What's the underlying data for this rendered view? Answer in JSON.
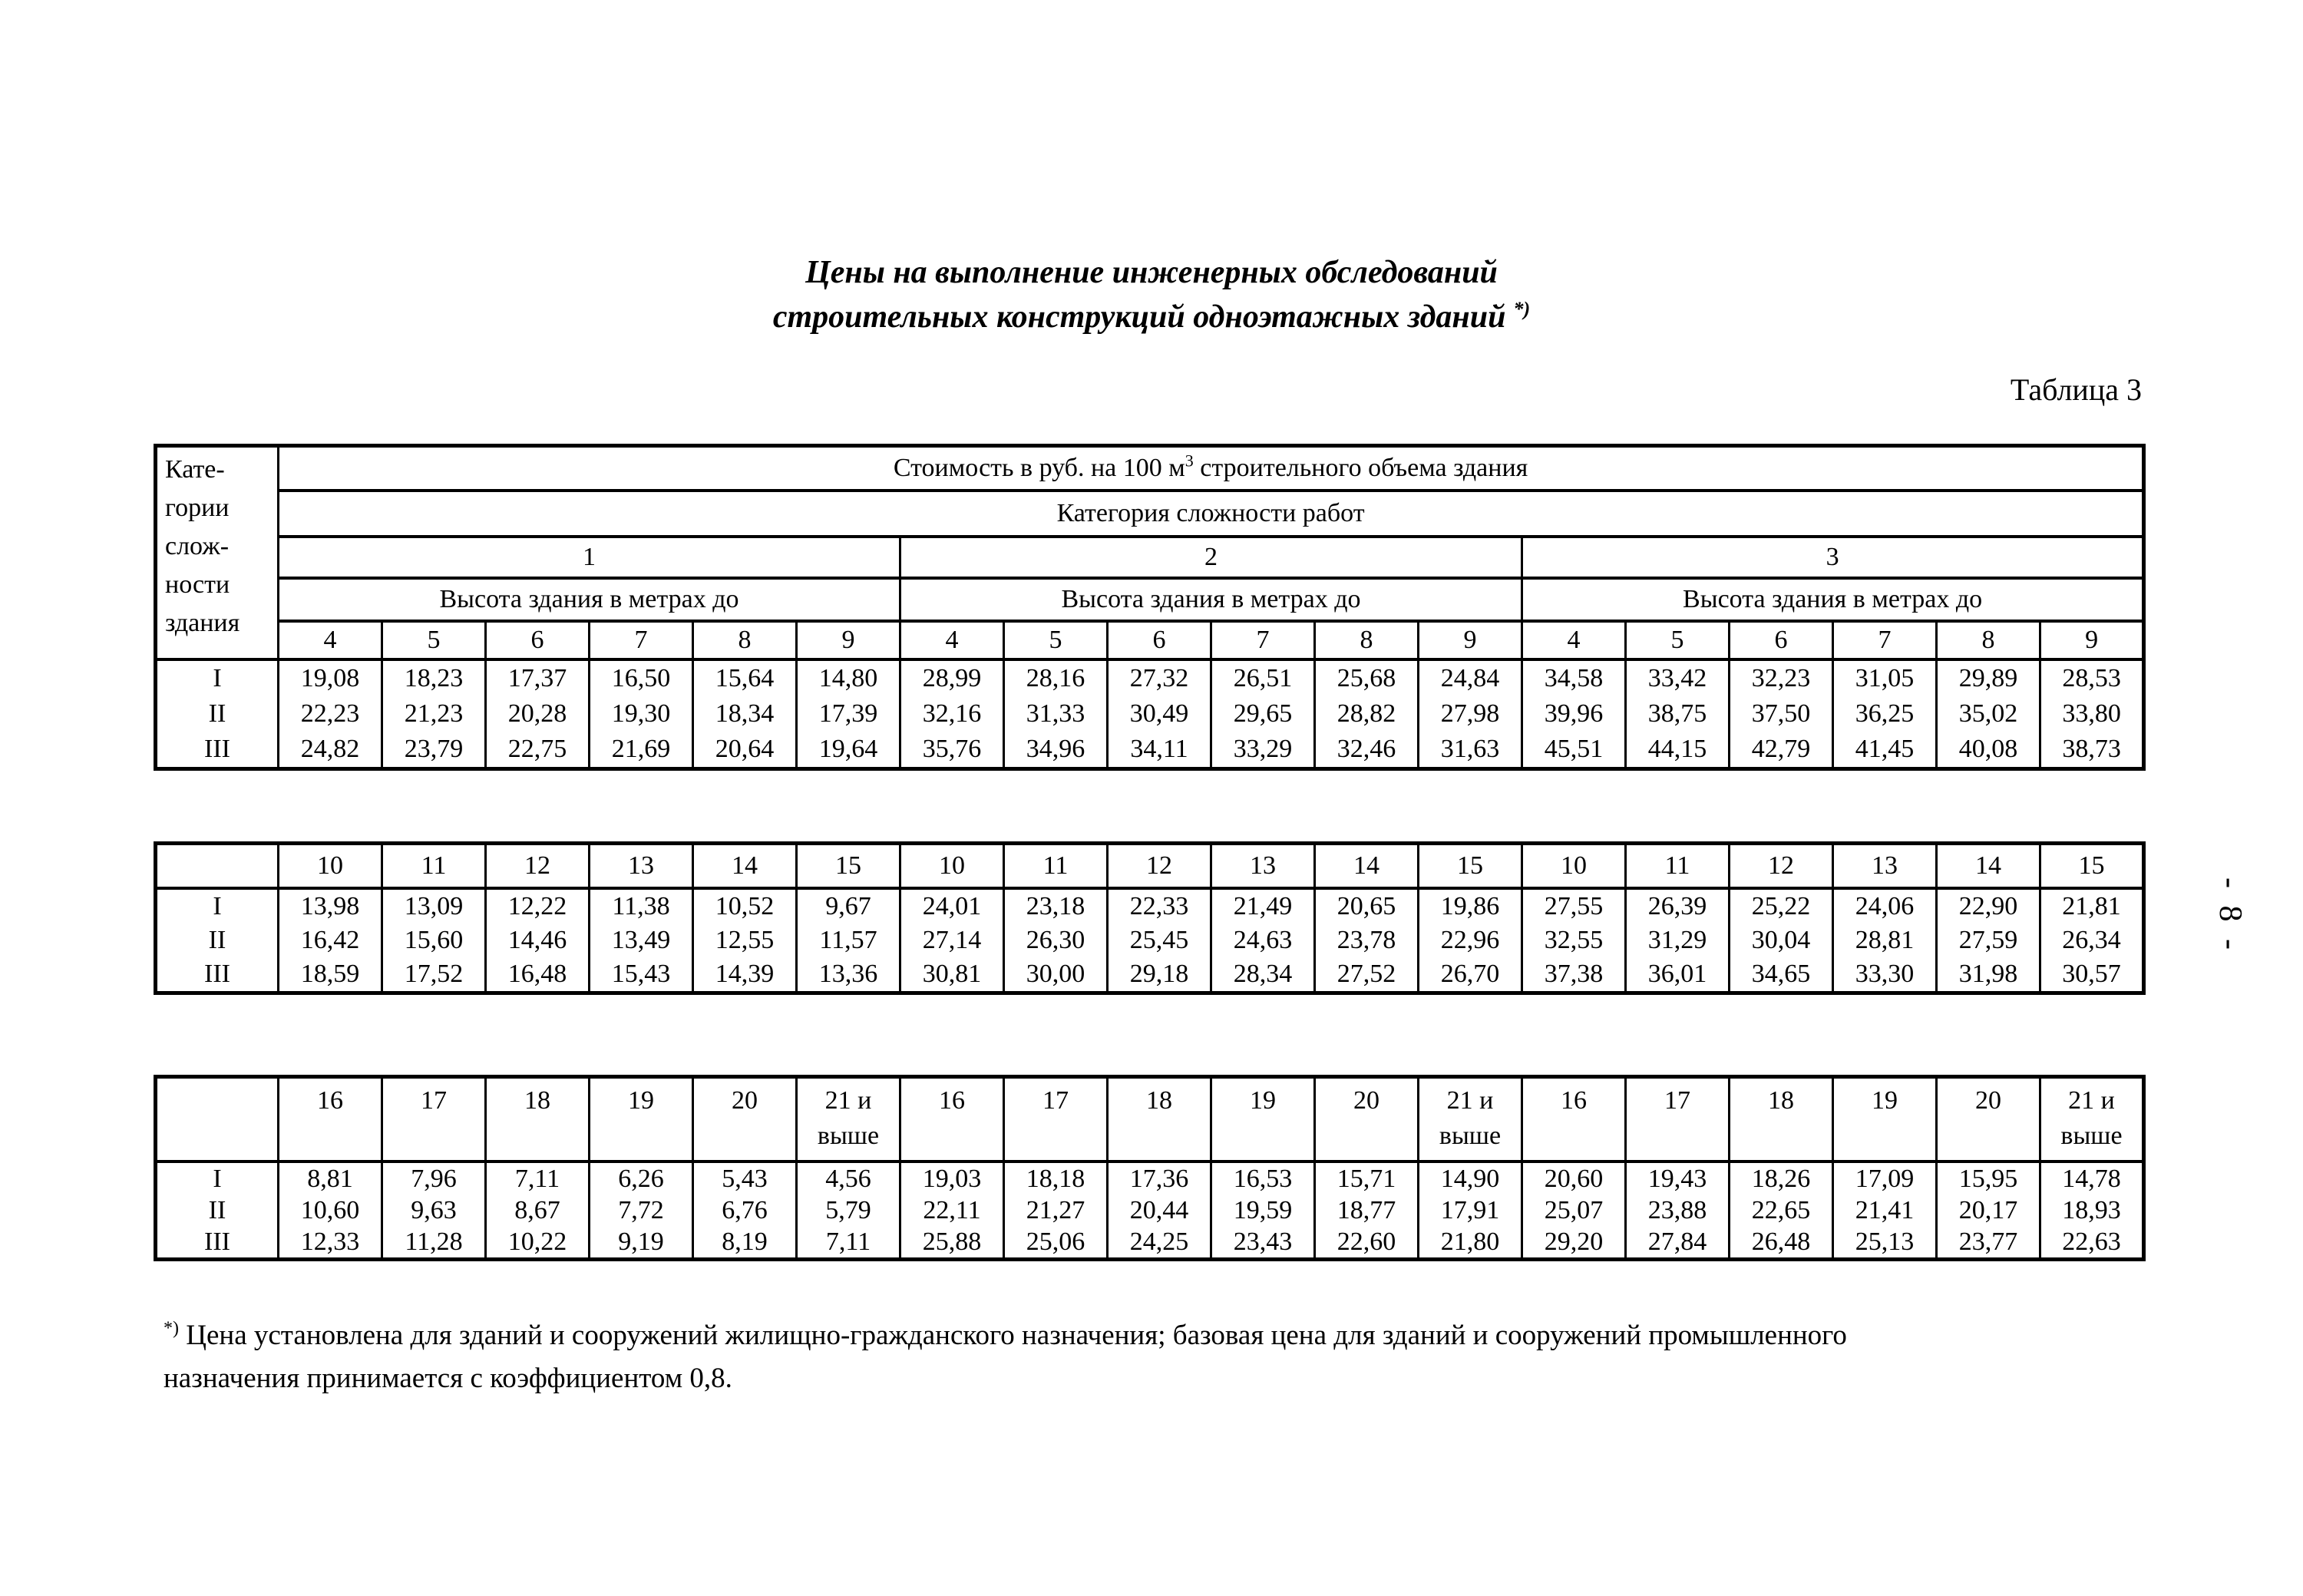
{
  "title": {
    "line1": "Цены на выполнение инженерных обследований",
    "line2": "строительных конструкций одноэтажных зданий",
    "footnote_mark": "*)"
  },
  "caption": "Таблица 3",
  "page_number": "- 8 -",
  "corner_header_lines": [
    "Кате-",
    "гории",
    "слож-",
    "ности",
    "здания"
  ],
  "cost_header": {
    "pre": "Стоимость в руб.  на 100 м",
    "sup": "3",
    "post": " строительного объема здания"
  },
  "category_header": "Категория сложности работ",
  "group_labels": [
    "1",
    "2",
    "3"
  ],
  "height_header": "Высота здания в метрах до",
  "tables": [
    {
      "id": "main",
      "columns": [
        "4",
        "5",
        "6",
        "7",
        "8",
        "9"
      ],
      "rows": [
        {
          "label": "I",
          "values": [
            "19,08",
            "18,23",
            "17,37",
            "16,50",
            "15,64",
            "14,80",
            "28,99",
            "28,16",
            "27,32",
            "26,51",
            "25,68",
            "24,84",
            "34,58",
            "33,42",
            "32,23",
            "31,05",
            "29,89",
            "28,53"
          ]
        },
        {
          "label": "II",
          "values": [
            "22,23",
            "21,23",
            "20,28",
            "19,30",
            "18,34",
            "17,39",
            "32,16",
            "31,33",
            "30,49",
            "29,65",
            "28,82",
            "27,98",
            "39,96",
            "38,75",
            "37,50",
            "36,25",
            "35,02",
            "33,80"
          ]
        },
        {
          "label": "III",
          "values": [
            "24,82",
            "23,79",
            "22,75",
            "21,69",
            "20,64",
            "19,64",
            "35,76",
            "34,96",
            "34,11",
            "33,29",
            "32,46",
            "31,63",
            "45,51",
            "44,15",
            "42,79",
            "41,45",
            "40,08",
            "38,73"
          ]
        }
      ]
    },
    {
      "id": "second",
      "columns": [
        "10",
        "11",
        "12",
        "13",
        "14",
        "15"
      ],
      "rows": [
        {
          "label": "I",
          "values": [
            "13,98",
            "13,09",
            "12,22",
            "11,38",
            "10,52",
            "9,67",
            "24,01",
            "23,18",
            "22,33",
            "21,49",
            "20,65",
            "19,86",
            "27,55",
            "26,39",
            "25,22",
            "24,06",
            "22,90",
            "21,81"
          ]
        },
        {
          "label": "II",
          "values": [
            "16,42",
            "15,60",
            "14,46",
            "13,49",
            "12,55",
            "11,57",
            "27,14",
            "26,30",
            "25,45",
            "24,63",
            "23,78",
            "22,96",
            "32,55",
            "31,29",
            "30,04",
            "28,81",
            "27,59",
            "26,34"
          ]
        },
        {
          "label": "III",
          "values": [
            "18,59",
            "17,52",
            "16,48",
            "15,43",
            "14,39",
            "13,36",
            "30,81",
            "30,00",
            "29,18",
            "28,34",
            "27,52",
            "26,70",
            "37,38",
            "36,01",
            "34,65",
            "33,30",
            "31,98",
            "30,57"
          ]
        }
      ]
    },
    {
      "id": "third",
      "columns": [
        "16",
        "17",
        "18",
        "19",
        "20",
        "21 и\nвыше"
      ],
      "rows": [
        {
          "label": "I",
          "values": [
            "8,81",
            "7,96",
            "7,11",
            "6,26",
            "5,43",
            "4,56",
            "19,03",
            "18,18",
            "17,36",
            "16,53",
            "15,71",
            "14,90",
            "20,60",
            "19,43",
            "18,26",
            "17,09",
            "15,95",
            "14,78"
          ]
        },
        {
          "label": "II",
          "values": [
            "10,60",
            "9,63",
            "8,67",
            "7,72",
            "6,76",
            "5,79",
            "22,11",
            "21,27",
            "20,44",
            "19,59",
            "18,77",
            "17,91",
            "25,07",
            "23,88",
            "22,65",
            "21,41",
            "20,17",
            "18,93"
          ]
        },
        {
          "label": "III",
          "values": [
            "12,33",
            "11,28",
            "10,22",
            "9,19",
            "8,19",
            "7,11",
            "25,88",
            "25,06",
            "24,25",
            "23,43",
            "22,60",
            "21,80",
            "29,20",
            "27,84",
            "26,48",
            "25,13",
            "23,77",
            "22,63"
          ]
        }
      ]
    }
  ],
  "footnote": {
    "mark": "*)",
    "text": " Цена установлена для зданий и сооружений жилищно-гражданского назначения;  базовая цена для зданий и сооружений промышленного назначения принимается с коэффициентом 0,8."
  }
}
